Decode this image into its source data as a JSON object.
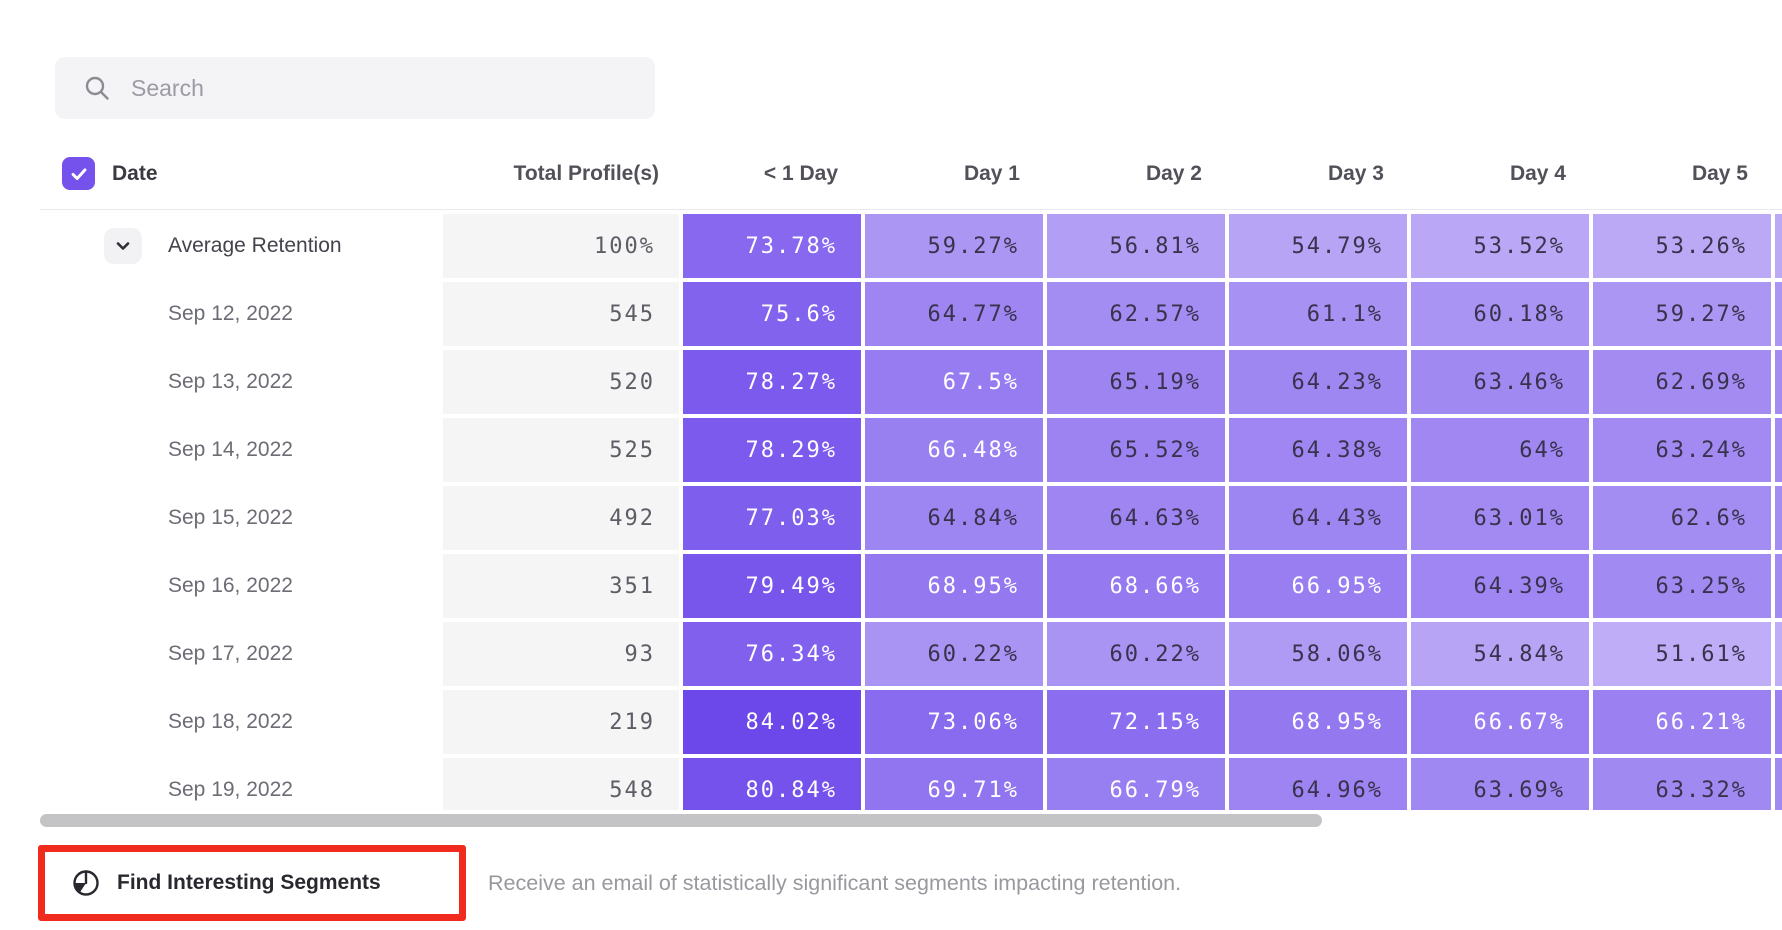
{
  "search": {
    "placeholder": "Search"
  },
  "table": {
    "columns": [
      "Date",
      "Total Profile(s)",
      "< 1 Day",
      "Day 1",
      "Day 2",
      "Day 3",
      "Day 4",
      "Day 5"
    ],
    "rows": [
      {
        "label": "Average Retention",
        "total": "100%",
        "checked": true,
        "expandable": true,
        "values": [
          73.78,
          59.27,
          56.81,
          54.79,
          53.52,
          53.26
        ]
      },
      {
        "label": "Sep 12, 2022",
        "total": "545",
        "values": [
          75.6,
          64.77,
          62.57,
          61.1,
          60.18,
          59.27
        ]
      },
      {
        "label": "Sep 13, 2022",
        "total": "520",
        "values": [
          78.27,
          67.5,
          65.19,
          64.23,
          63.46,
          62.69
        ]
      },
      {
        "label": "Sep 14, 2022",
        "total": "525",
        "values": [
          78.29,
          66.48,
          65.52,
          64.38,
          64,
          63.24
        ]
      },
      {
        "label": "Sep 15, 2022",
        "total": "492",
        "values": [
          77.03,
          64.84,
          64.63,
          64.43,
          63.01,
          62.6
        ]
      },
      {
        "label": "Sep 16, 2022",
        "total": "351",
        "values": [
          79.49,
          68.95,
          68.66,
          66.95,
          64.39,
          63.25
        ]
      },
      {
        "label": "Sep 17, 2022",
        "total": "93",
        "values": [
          76.34,
          60.22,
          60.22,
          58.06,
          54.84,
          51.61
        ]
      },
      {
        "label": "Sep 18, 2022",
        "total": "219",
        "values": [
          84.02,
          73.06,
          72.15,
          68.95,
          66.67,
          66.21
        ]
      },
      {
        "label": "Sep 19, 2022",
        "total": "548",
        "values": [
          80.84,
          69.71,
          66.79,
          64.96,
          63.69,
          63.32
        ]
      }
    ]
  },
  "footer": {
    "button_label": "Find Interesting Segments",
    "description": "Receive an email of statistically significant segments impacting retention."
  },
  "colors": {
    "accent": "#7552eb",
    "heat_light": "#c2b2f7",
    "heat_dark": "#6a45ea",
    "heat_min_value": 50.5,
    "heat_max_value": 85,
    "white_text_threshold": 66,
    "highlight_red": "#f02b1d",
    "scrollbar": "#c4c4c6"
  }
}
